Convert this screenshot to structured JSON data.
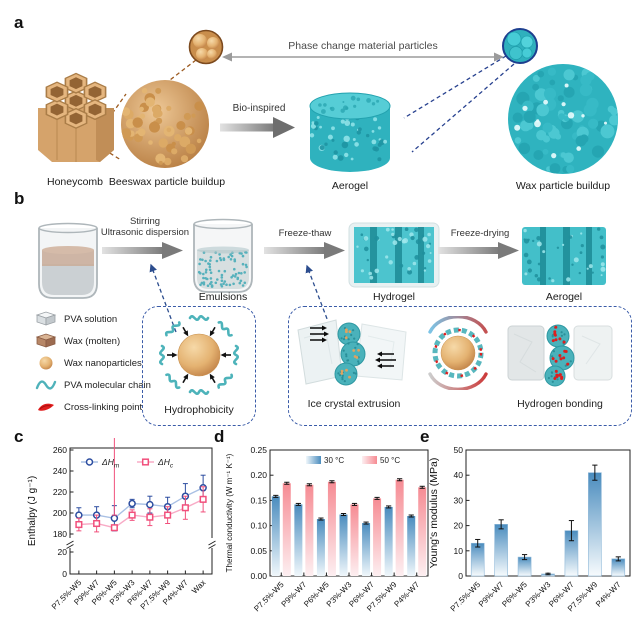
{
  "panels": {
    "a": {
      "label": "a",
      "phase_particles_text": "Phase change material particles",
      "bio_inspired_text": "Bio-inspired",
      "captions": {
        "honeycomb": "Honeycomb",
        "beeswax": "Beeswax particle buildup",
        "aerogel": "Aerogel",
        "wax_buildup": "Wax particle buildup"
      }
    },
    "b": {
      "label": "b",
      "step_labels": {
        "stirring": "Stirring",
        "ultrasonic": "Ultrasonic dispersion",
        "freeze_thaw": "Freeze-thaw",
        "freeze_drying": "Freeze-drying"
      },
      "stage_captions": {
        "emulsions": "Emulsions",
        "hydrogel": "Hydrogel",
        "aerogel": "Aerogel"
      },
      "legend": [
        "PVA solution",
        "Wax (molten)",
        "Wax nanoparticles",
        "PVA molecular chain",
        "Cross-linking point"
      ],
      "insets": {
        "hydrophobicity": "Hydrophobicity",
        "ice": "Ice crystal extrusion",
        "hbond": "Hydrogen bonding"
      }
    },
    "c": {
      "label": "c"
    },
    "d": {
      "label": "d"
    },
    "e": {
      "label": "e"
    }
  },
  "colors": {
    "teal": "#35b9c4",
    "tan": "#d9a86c",
    "navy_dash": "#2c4d8e",
    "brown_dash": "#9c5a20"
  },
  "chart_data": [
    {
      "id": "c",
      "type": "line",
      "ylabel": "Enthalpy (J g⁻¹)",
      "categories": [
        "P7.5%-W5",
        "P9%-W7",
        "P6%-W5",
        "P3%-W3",
        "P6%-W7",
        "P7.5%-W9",
        "P4%-W7",
        "Wax"
      ],
      "series": [
        {
          "name": "ΔHm",
          "label_main": "ΔH",
          "label_sub": "m",
          "marker": "circle",
          "marker_color": "#2c4da0",
          "line_color": "#a9c0e4",
          "values": [
            198,
            198,
            195,
            209,
            208,
            206,
            216,
            224
          ],
          "errors": [
            7,
            8,
            12,
            4,
            8,
            9,
            12,
            12
          ]
        },
        {
          "name": "ΔHc",
          "label_main": "ΔH",
          "label_sub": "c",
          "marker": "square",
          "marker_color": "#f1507c",
          "line_color": "#f8abc6",
          "values": [
            189,
            190,
            186,
            198,
            196,
            198,
            205,
            213
          ],
          "errors": [
            6,
            8,
            12,
            5,
            8,
            8,
            11,
            12
          ]
        }
      ],
      "yticks": [
        0,
        20,
        180,
        200,
        220,
        240,
        260
      ],
      "axis_break": {
        "lower_max": 20,
        "upper_min": 180,
        "upper_max": 260
      },
      "legend_position": "top"
    },
    {
      "id": "d",
      "type": "grouped_bar",
      "ylabel": "Thermal conductivity (W m⁻¹ K⁻¹)",
      "categories": [
        "P7.5%-W5",
        "P9%-W7",
        "P6%-W5",
        "P3%-W3",
        "P6%-W7",
        "P7.5%-W9",
        "P4%-W7"
      ],
      "series": [
        {
          "name": "30 °C",
          "color_top": "#4a8cbe",
          "color_bottom": "#f0f7fb",
          "values": [
            0.158,
            0.142,
            0.113,
            0.122,
            0.105,
            0.137,
            0.119
          ],
          "errors": [
            0.002,
            0.002,
            0.002,
            0.002,
            0.002,
            0.002,
            0.002
          ]
        },
        {
          "name": "50 °C",
          "color_top": "#f68b93",
          "color_bottom": "#fdeff1",
          "values": [
            0.184,
            0.181,
            0.187,
            0.142,
            0.154,
            0.191,
            0.176
          ],
          "errors": [
            0.002,
            0.002,
            0.002,
            0.002,
            0.002,
            0.002,
            0.002
          ]
        }
      ],
      "ylim": [
        0,
        0.25
      ],
      "yticks": [
        0,
        0.05,
        0.1,
        0.15,
        0.2,
        0.25
      ],
      "ytick_labels": [
        "0.00",
        "0.05",
        "0.10",
        "0.15",
        "0.20",
        "0.25"
      ],
      "legend_position": "top"
    },
    {
      "id": "e",
      "type": "bar",
      "ylabel": "Young's modulus (MPa)",
      "categories": [
        "P7.5%-W5",
        "P9%-W7",
        "P6%-W5",
        "P3%-W3",
        "P6%-W7",
        "P7.5%-W9",
        "P4%-W7"
      ],
      "series": [
        {
          "name": "Young's modulus",
          "color_top": "#4a8cbe",
          "color_bottom": "#f7fbfd",
          "values": [
            13,
            20.5,
            7.5,
            0.8,
            18,
            41,
            6.8
          ],
          "errors": [
            1.5,
            1.8,
            1.0,
            0.3,
            4.0,
            3.0,
            0.8
          ]
        }
      ],
      "ylim": [
        0,
        50
      ],
      "yticks": [
        0,
        10,
        20,
        30,
        40,
        50
      ],
      "ytick_labels": [
        "0",
        "10",
        "20",
        "30",
        "40",
        "50"
      ]
    }
  ]
}
